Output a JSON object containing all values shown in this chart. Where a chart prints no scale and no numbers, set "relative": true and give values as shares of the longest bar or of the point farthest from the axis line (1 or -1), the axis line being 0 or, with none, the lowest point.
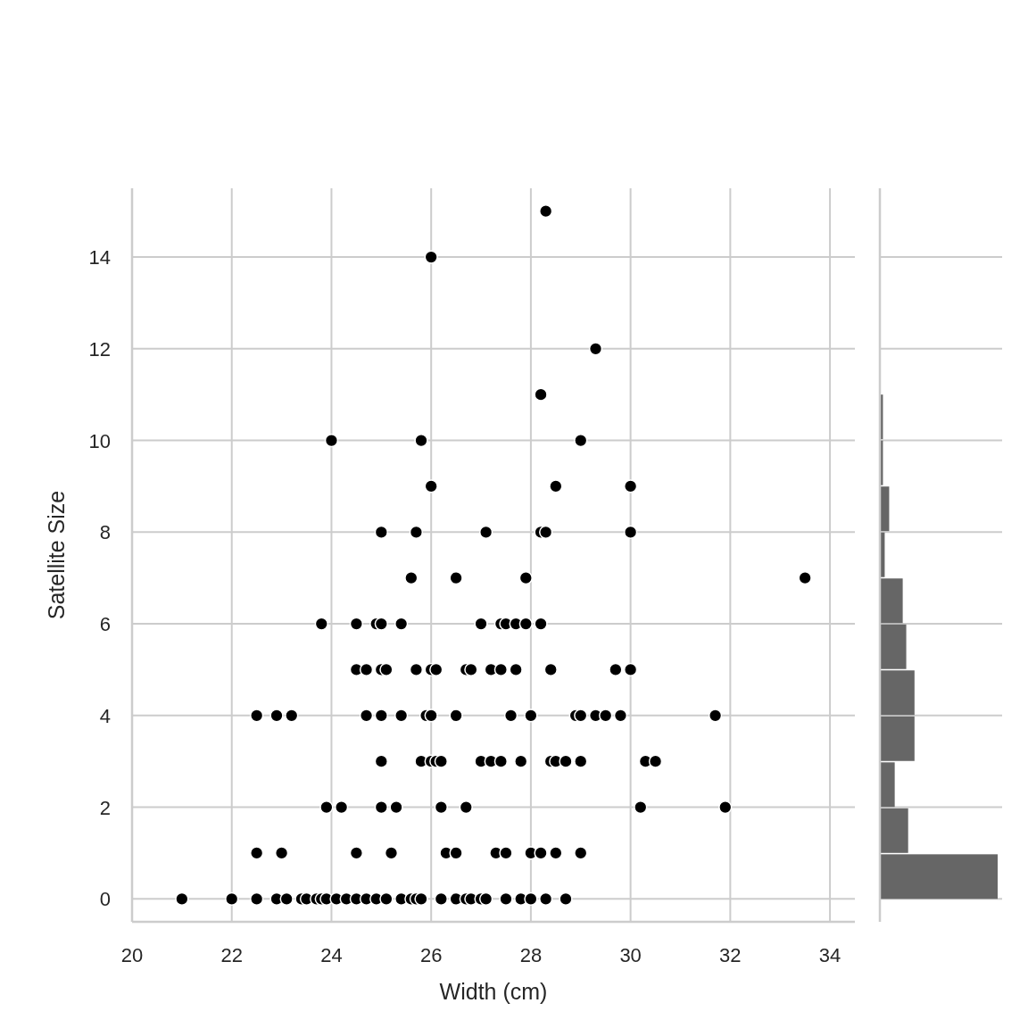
{
  "chart_data": [
    {
      "type": "scatter",
      "xlabel": "Width (cm)",
      "ylabel": "Satellite Size",
      "color": "#000000",
      "marker": "circle",
      "grid": true,
      "x": [
        21.0,
        22.0,
        22.5,
        22.9,
        23.1,
        23.4,
        23.5,
        23.7,
        23.8,
        23.9,
        24.1,
        24.3,
        24.5,
        24.7,
        24.9,
        25.1,
        25.4,
        25.6,
        25.7,
        25.8,
        26.2,
        26.5,
        26.7,
        26.8,
        27.0,
        27.1,
        27.5,
        27.8,
        28.0,
        28.3,
        28.7,
        22.5,
        23.0,
        24.5,
        25.2,
        26.3,
        26.5,
        27.3,
        27.5,
        28.0,
        28.2,
        28.5,
        29.0,
        23.9,
        24.2,
        25.0,
        25.3,
        26.2,
        26.7,
        30.2,
        31.9,
        25.0,
        25.8,
        26.0,
        26.1,
        26.2,
        27.0,
        27.2,
        27.4,
        27.8,
        28.4,
        28.5,
        28.7,
        29.0,
        30.3,
        30.5,
        22.5,
        22.9,
        23.2,
        24.7,
        25.0,
        25.4,
        25.9,
        26.0,
        26.5,
        27.6,
        28.0,
        28.9,
        29.0,
        29.3,
        29.5,
        29.8,
        31.7,
        24.5,
        24.7,
        25.0,
        25.1,
        25.7,
        26.0,
        26.1,
        26.7,
        26.8,
        27.2,
        27.4,
        27.7,
        28.4,
        29.7,
        30.0,
        23.8,
        24.5,
        24.9,
        25.0,
        25.4,
        27.0,
        27.4,
        27.5,
        27.7,
        27.9,
        28.2,
        25.6,
        26.5,
        27.9,
        33.5,
        25.0,
        25.7,
        27.1,
        28.2,
        28.3,
        30.0,
        26.0,
        28.5,
        30.0,
        24.0,
        25.8,
        29.0,
        28.2,
        29.3,
        26.0,
        28.3
      ],
      "values": [
        0,
        0,
        0,
        0,
        0,
        0,
        0,
        0,
        0,
        0,
        0,
        0,
        0,
        0,
        0,
        0,
        0,
        0,
        0,
        0,
        0,
        0,
        0,
        0,
        0,
        0,
        0,
        0,
        0,
        0,
        0,
        1,
        1,
        1,
        1,
        1,
        1,
        1,
        1,
        1,
        1,
        1,
        1,
        2,
        2,
        2,
        2,
        2,
        2,
        2,
        2,
        3,
        3,
        3,
        3,
        3,
        3,
        3,
        3,
        3,
        3,
        3,
        3,
        3,
        3,
        3,
        4,
        4,
        4,
        4,
        4,
        4,
        4,
        4,
        4,
        4,
        4,
        4,
        4,
        4,
        4,
        4,
        4,
        5,
        5,
        5,
        5,
        5,
        5,
        5,
        5,
        5,
        5,
        5,
        5,
        5,
        5,
        5,
        6,
        6,
        6,
        6,
        6,
        6,
        6,
        6,
        6,
        6,
        6,
        7,
        7,
        7,
        7,
        8,
        8,
        8,
        8,
        8,
        8,
        9,
        9,
        9,
        10,
        10,
        10,
        11,
        12,
        14,
        15
      ],
      "xlim": [
        20,
        34.5
      ],
      "xticks": [
        20,
        22,
        24,
        26,
        28,
        30,
        32,
        34
      ],
      "ylim": [
        -0.5,
        15.5
      ],
      "yticks": [
        0,
        2,
        4,
        6,
        8,
        10,
        12,
        14
      ]
    },
    {
      "type": "bar",
      "orientation": "horizontal",
      "relative": true,
      "color": "#666666",
      "grid": true,
      "categories": [
        null,
        null,
        null,
        null,
        null,
        null,
        null,
        null,
        null,
        null,
        null
      ],
      "values": [
        0.026,
        0.026,
        0.079,
        0.041,
        0.194,
        0.224,
        0.294,
        0.294,
        0.126,
        0.24,
        1
      ]
    }
  ]
}
